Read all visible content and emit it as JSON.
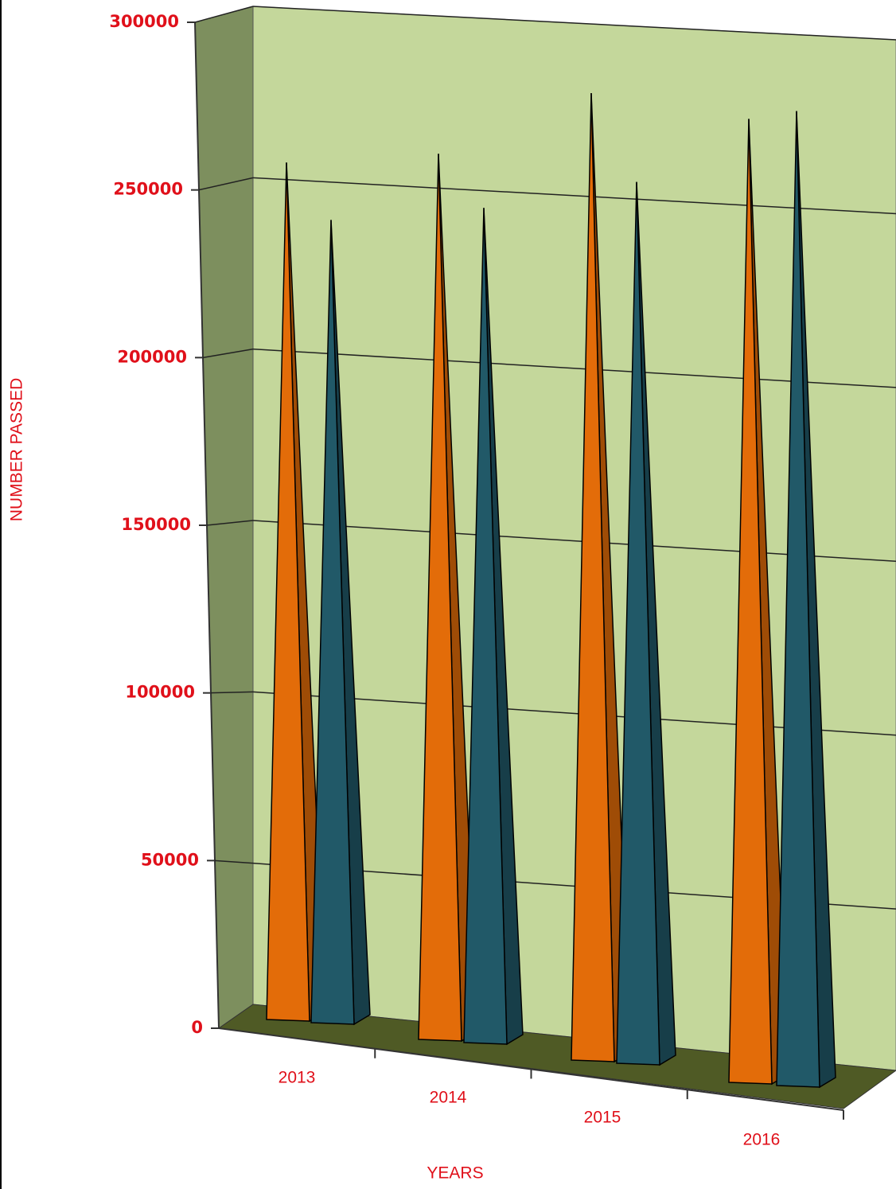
{
  "chart_data": {
    "type": "pyramid3d",
    "x_label": "YEARS",
    "y_label": "NUMBER PASSED",
    "categories": [
      "2013",
      "2014",
      "2015",
      "2016"
    ],
    "series": [
      {
        "color": "#e36c09",
        "values": [
          255000,
          260000,
          280000,
          275000
        ]
      },
      {
        "color": "#215968",
        "values": [
          239000,
          245000,
          255000,
          278000
        ]
      }
    ],
    "ylim": [
      0,
      300000
    ],
    "yticks": [
      0,
      50000,
      100000,
      150000,
      200000,
      250000,
      300000
    ],
    "grid": true
  }
}
